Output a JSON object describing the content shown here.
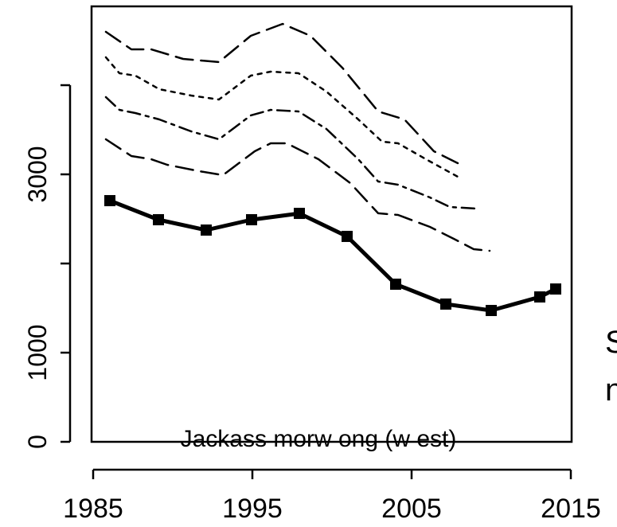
{
  "chart_data": {
    "type": "line",
    "annotation": "Jackass morw ong (w est)",
    "side_texts": [
      "S",
      "n"
    ],
    "xlim": [
      1985,
      2015
    ],
    "xticks": [
      1985,
      1995,
      2005,
      2015
    ],
    "ylim": [
      0,
      4884
    ],
    "yticks": [
      0,
      1000,
      3000
    ],
    "yticks_unlabeled": [
      2000,
      4000
    ],
    "series": [
      {
        "color": "#000000",
        "style": "solid",
        "markers": true,
        "x": [
          1986.05,
          1989.1,
          1992.1,
          1994.95,
          1997.95,
          2000.95,
          2004.0,
          2007.15,
          2010.0,
          2013.05,
          2014.05
        ],
        "values": [
          2705,
          2491,
          2375,
          2491,
          2562,
          2304,
          1768,
          1545,
          1473,
          1625,
          1714
        ]
      },
      {
        "color": "#000000",
        "style": "longdash",
        "markers": false,
        "x": [
          1985.8,
          1987.4,
          1988.65,
          1990.65,
          1992.9,
          1994.9,
          1996.9,
          1998.65,
          2000.65,
          2002.9,
          2004.55,
          2006.4,
          2007.9
        ],
        "values": [
          4598,
          4402,
          4402,
          4295,
          4259,
          4554,
          4688,
          4554,
          4196,
          3705,
          3616,
          3259,
          3125
        ]
      },
      {
        "color": "#000000",
        "style": "dotted",
        "markers": false,
        "x": [
          1985.8,
          1986.65,
          1987.65,
          1989.15,
          1991.15,
          1992.9,
          1994.9,
          1996.15,
          1997.9,
          1999.65,
          2001.65,
          2003.15,
          2004.15,
          2005.9,
          2007.9
        ],
        "values": [
          4313,
          4134,
          4107,
          3955,
          3884,
          3839,
          4107,
          4152,
          4134,
          3929,
          3616,
          3366,
          3348,
          3170,
          2973
        ]
      },
      {
        "color": "#000000",
        "style": "dashdot",
        "markers": false,
        "x": [
          1985.8,
          1986.65,
          1987.65,
          1989.15,
          1991.15,
          1992.9,
          1994.9,
          1996.15,
          1997.9,
          1999.65,
          2001.65,
          2002.9,
          2004.15,
          2006.15,
          2007.4,
          2009.0
        ],
        "values": [
          3866,
          3723,
          3688,
          3616,
          3482,
          3393,
          3661,
          3723,
          3705,
          3509,
          3170,
          2920,
          2884,
          2741,
          2634,
          2616
        ]
      },
      {
        "color": "#000000",
        "style": "dashed",
        "markers": false,
        "x": [
          1985.8,
          1987.4,
          1988.65,
          1989.65,
          1991.65,
          1993.15,
          1995.15,
          1996.15,
          1997.15,
          1999.15,
          2001.15,
          2002.9,
          2004.15,
          2006.15,
          2007.65,
          2008.9,
          2009.9
        ],
        "values": [
          3393,
          3205,
          3170,
          3107,
          3036,
          2991,
          3259,
          3348,
          3348,
          3170,
          2902,
          2563,
          2545,
          2411,
          2277,
          2161,
          2143
        ]
      }
    ]
  }
}
